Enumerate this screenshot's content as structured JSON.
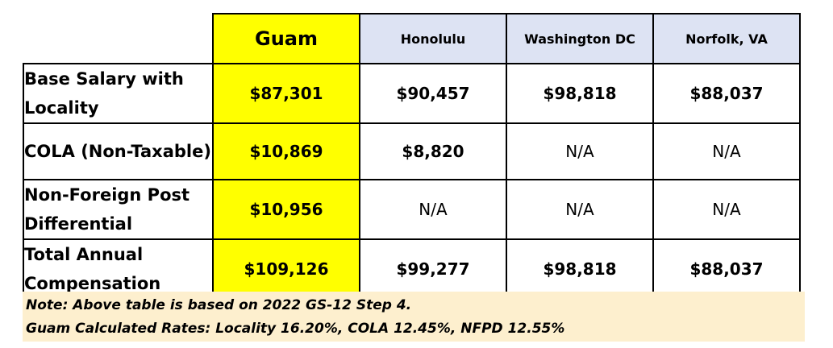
{
  "table": {
    "columns": [
      "Guam",
      "Honolulu",
      "Washington DC",
      "Norfolk, VA"
    ],
    "rows": [
      {
        "label": "Base Salary with Locality",
        "values": [
          "$87,301",
          "$90,457",
          "$98,818",
          "$88,037"
        ]
      },
      {
        "label": "COLA (Non-Taxable)",
        "values": [
          "$10,869",
          "$8,820",
          "N/A",
          "N/A"
        ]
      },
      {
        "label": "Non-Foreign Post Differential",
        "values": [
          "$10,956",
          "N/A",
          "N/A",
          "N/A"
        ]
      },
      {
        "label": "Total Annual Compensation",
        "values": [
          "$109,126",
          "$99,277",
          "$98,818",
          "$88,037"
        ]
      }
    ]
  },
  "note": {
    "line1": "Note: Above table is based on 2022 GS-12 Step 4.",
    "line2": "Guam Calculated Rates: Locality 16.20%, COLA 12.45%, NFPD 12.55%"
  },
  "colors": {
    "guam": "#ffff00",
    "city_header": "#dde3f3",
    "note_bg": "#fdefce"
  }
}
